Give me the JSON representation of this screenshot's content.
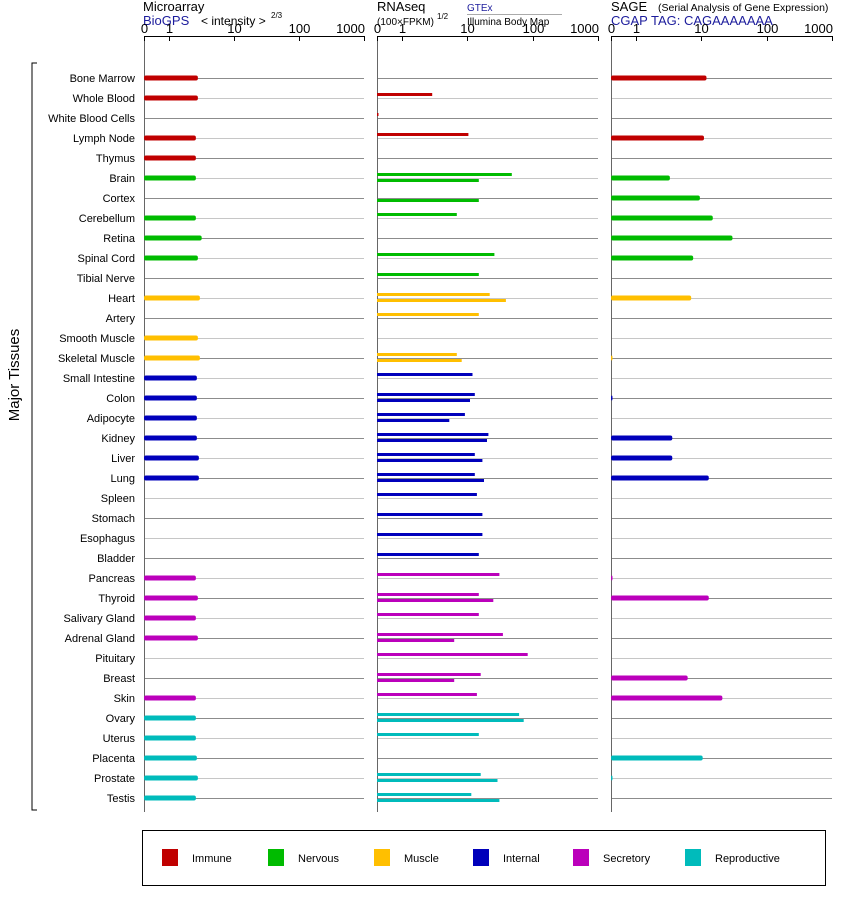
{
  "panels_header": {
    "microarray": {
      "title": "Microarray",
      "source": "BioGPS",
      "scale_label": "< intensity >",
      "scale_exp": "2/3"
    },
    "rnaseq": {
      "title": "RNAseq",
      "unit": "(100×FPKM)",
      "unit_exp": "1/2",
      "source_top": "GTEx",
      "source_bottom": "Illumina Body Map"
    },
    "sage": {
      "title": "SAGE",
      "subtitle": "(Serial Analysis of Gene Expression)",
      "tag_line": "CGAP TAG: CAGAAAAAAA"
    }
  },
  "colors": {
    "Immune": "#c00000",
    "Nervous": "#00bb00",
    "Muscle": "#ffbf00",
    "Internal": "#0000bb",
    "Secretory": "#bb00bb",
    "Reproductive": "#00bbbb"
  },
  "chart_data": {
    "type": "bar",
    "orientation": "horizontal",
    "row_group_label": "Major Tissues",
    "ticks": [
      "0",
      "1",
      "10",
      "100",
      "1000"
    ],
    "tick_values": [
      0,
      1,
      10,
      100,
      1000
    ],
    "xlim": [
      0,
      1000
    ],
    "categories": [
      "Bone Marrow",
      "Whole Blood",
      "White Blood Cells",
      "Lymph Node",
      "Thymus",
      "Brain",
      "Cortex",
      "Cerebellum",
      "Retina",
      "Spinal Cord",
      "Tibial Nerve",
      "Heart",
      "Artery",
      "Smooth Muscle",
      "Skeletal Muscle",
      "Small Intestine",
      "Colon",
      "Adipocyte",
      "Kidney",
      "Liver",
      "Lung",
      "Spleen",
      "Stomach",
      "Esophagus",
      "Bladder",
      "Pancreas",
      "Thyroid",
      "Salivary Gland",
      "Adrenal Gland",
      "Pituitary",
      "Breast",
      "Skin",
      "Ovary",
      "Uterus",
      "Placenta",
      "Prostate",
      "Testis"
    ],
    "groups": [
      "Immune",
      "Immune",
      "Immune",
      "Immune",
      "Immune",
      "Nervous",
      "Nervous",
      "Nervous",
      "Nervous",
      "Nervous",
      "Nervous",
      "Muscle",
      "Muscle",
      "Muscle",
      "Muscle",
      "Internal",
      "Internal",
      "Internal",
      "Internal",
      "Internal",
      "Internal",
      "Internal",
      "Internal",
      "Internal",
      "Internal",
      "Secretory",
      "Secretory",
      "Secretory",
      "Secretory",
      "Secretory",
      "Secretory",
      "Secretory",
      "Reproductive",
      "Reproductive",
      "Reproductive",
      "Reproductive",
      "Reproductive"
    ],
    "panels": [
      {
        "name": "Microarray",
        "values": [
          2.8,
          2.8,
          null,
          2.6,
          2.6,
          2.6,
          null,
          2.6,
          3.2,
          2.8,
          null,
          3.0,
          null,
          2.8,
          3.0,
          2.7,
          2.7,
          2.7,
          2.7,
          2.9,
          2.9,
          null,
          null,
          null,
          null,
          2.6,
          2.8,
          2.6,
          2.8,
          null,
          null,
          2.6,
          2.6,
          2.6,
          2.7,
          2.8,
          2.6
        ]
      },
      {
        "name": "RNAseq",
        "series": [
          {
            "name": "GTEx",
            "values": [
              null,
              2.9,
              0.03,
              10.4,
              null,
              48,
              null,
              6.9,
              null,
              26,
              15,
              22,
              15,
              null,
              6.9,
              12,
              13,
              9.2,
              21,
              13,
              13,
              14,
              17,
              17,
              15,
              31,
              15,
              15,
              35,
              84,
              16,
              14,
              62,
              15,
              null,
              16,
              11.5
            ]
          },
          {
            "name": "Illumina Body Map",
            "values": [
              null,
              null,
              null,
              null,
              null,
              15,
              15,
              null,
              null,
              null,
              null,
              39,
              null,
              null,
              8.2,
              null,
              11,
              5.3,
              20,
              17,
              18,
              null,
              null,
              null,
              null,
              null,
              25,
              null,
              6.3,
              null,
              6.3,
              null,
              73,
              null,
              null,
              29,
              31
            ]
          }
        ]
      },
      {
        "name": "SAGE",
        "values": [
          12,
          null,
          null,
          11,
          null,
          3.3,
          9.5,
          15,
          30,
          7.5,
          null,
          7.0,
          null,
          null,
          0.03,
          null,
          0.06,
          null,
          3.6,
          3.6,
          13,
          null,
          null,
          null,
          null,
          0.06,
          13,
          null,
          null,
          null,
          6.2,
          21,
          null,
          null,
          10.5,
          0.06,
          null
        ]
      }
    ],
    "legend": [
      "Immune",
      "Nervous",
      "Muscle",
      "Internal",
      "Secretory",
      "Reproductive"
    ],
    "legend_position": "bottom"
  }
}
